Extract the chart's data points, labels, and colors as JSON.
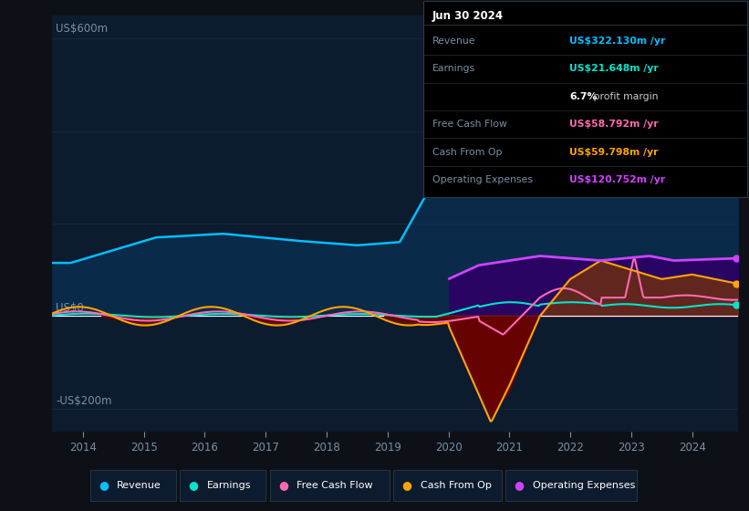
{
  "bg_color": "#0d1117",
  "plot_bg_color": "#0d1b2e",
  "ylim": [
    -250,
    650
  ],
  "xlim": [
    2013.5,
    2024.75
  ],
  "x_ticks": [
    2014,
    2015,
    2016,
    2017,
    2018,
    2019,
    2020,
    2021,
    2022,
    2023,
    2024
  ],
  "y_label_top": "US$600m",
  "y_label_zero": "US$0",
  "y_label_bottom": "-US$200m",
  "info_box": {
    "title": "Jun 30 2024",
    "rows": [
      {
        "label": "Revenue",
        "value": "US$322.130m /yr",
        "value_color": "#00bfff"
      },
      {
        "label": "Earnings",
        "value": "US$21.648m /yr",
        "value_color": "#00e5cc"
      },
      {
        "label": "",
        "value": "6.7% profit margin",
        "value_color": "#cccccc"
      },
      {
        "label": "Free Cash Flow",
        "value": "US$58.792m /yr",
        "value_color": "#ff69b4"
      },
      {
        "label": "Cash From Op",
        "value": "US$59.798m /yr",
        "value_color": "#ffa500"
      },
      {
        "label": "Operating Expenses",
        "value": "US$120.752m /yr",
        "value_color": "#cc44ff"
      }
    ]
  },
  "legend": [
    {
      "label": "Revenue",
      "color": "#00bfff"
    },
    {
      "label": "Earnings",
      "color": "#00e5cc"
    },
    {
      "label": "Free Cash Flow",
      "color": "#ff69b4"
    },
    {
      "label": "Cash From Op",
      "color": "#ffa500"
    },
    {
      "label": "Operating Expenses",
      "color": "#cc44ff"
    }
  ],
  "revenue_line_color": "#00bfff",
  "earnings_line_color": "#00e5cc",
  "fcf_line_color": "#ff69b4",
  "cop_line_color": "#ffa500",
  "opex_line_color": "#cc44ff",
  "revenue_fill": "#0a2a4a",
  "opex_fill": "#2d0066",
  "cop_fill_neg": "#5c1a00",
  "cop_fill_pos": "#6b3000",
  "fcf_fill_neg": "#6b0000",
  "grid_color": "#1e3050",
  "zero_line_color": "#ffffff",
  "label_color": "#7a8fa6",
  "tick_color": "#7a8fa6"
}
